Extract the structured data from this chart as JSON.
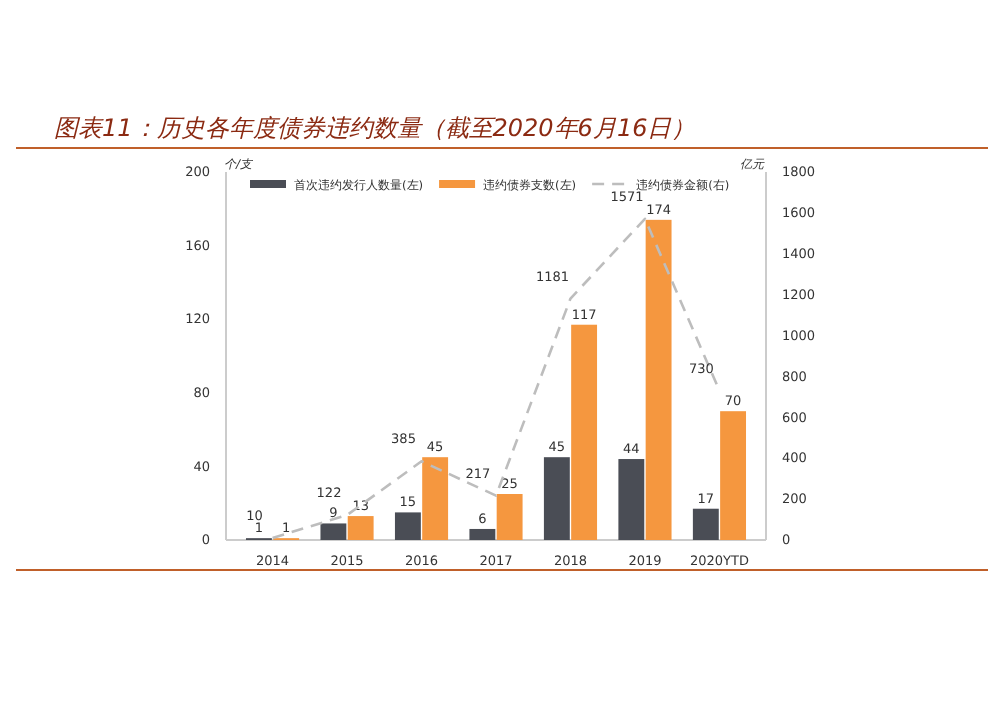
{
  "chart_data": {
    "type": "bar",
    "title": "图表11：历史各年度债券违约数量（截至2020年6月16日）",
    "ylabel": "个/支",
    "y2label": "亿元",
    "categories": [
      "2014",
      "2015",
      "2016",
      "2017",
      "2018",
      "2019",
      "2020YTD"
    ],
    "series": [
      {
        "name": "首次违约发行人数量(左)",
        "color": "#4a4d55",
        "values": [
          1,
          9,
          15,
          6,
          45,
          44,
          17
        ]
      },
      {
        "name": "违约债券支数(左)",
        "color": "#f5973f",
        "values": [
          1,
          13,
          45,
          25,
          117,
          174,
          70
        ]
      },
      {
        "name": "违约债券金额(右)",
        "type": "line",
        "axis": "y2",
        "color": "#bdbdbd",
        "line_style": "dashed",
        "values": [
          10,
          122,
          385,
          217,
          1181,
          1571,
          730
        ]
      }
    ],
    "ylim": [
      0,
      200
    ],
    "yticks": [
      0,
      40,
      80,
      120,
      160,
      200
    ],
    "y2lim": [
      0,
      1800
    ],
    "y2ticks": [
      0,
      200,
      400,
      600,
      800,
      1000,
      1200,
      1400,
      1600,
      1800
    ],
    "data_labels": true,
    "legend": "top",
    "grid": false
  }
}
